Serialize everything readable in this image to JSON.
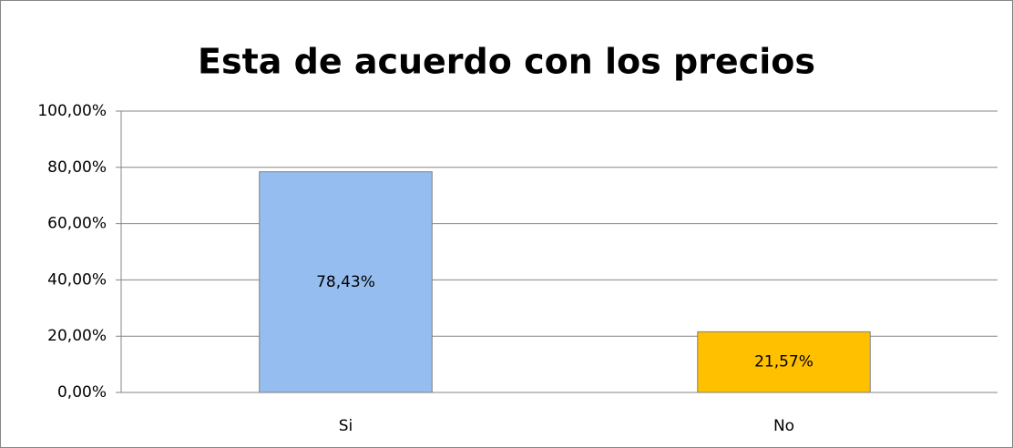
{
  "chart_data": {
    "type": "bar",
    "title": "Esta de acuerdo con los precios",
    "categories": [
      "Si",
      "No"
    ],
    "values": [
      78.43,
      21.57
    ],
    "value_labels": [
      "78,43%",
      "21,57%"
    ],
    "colors": [
      "#95bdf0",
      "#ffc000"
    ],
    "ylim": [
      0,
      100
    ],
    "yticks": [
      {
        "value": 0,
        "label": "0,00%"
      },
      {
        "value": 20,
        "label": "20,00%"
      },
      {
        "value": 40,
        "label": "40,00%"
      },
      {
        "value": 60,
        "label": "60,00%"
      },
      {
        "value": 80,
        "label": "80,00%"
      },
      {
        "value": 100,
        "label": "100,00%"
      }
    ],
    "grid": true
  }
}
